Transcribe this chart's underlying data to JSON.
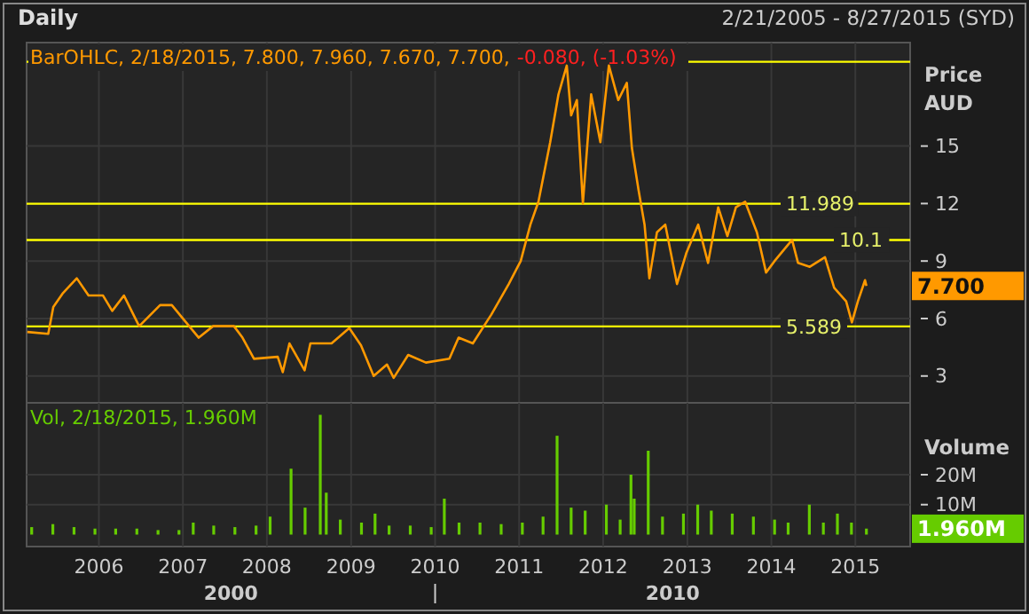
{
  "chart_data": [
    {
      "type": "line",
      "title": "Daily",
      "subtitle": "2/21/2005 - 8/27/2015 (SYD)",
      "ylabel": "Price AUD",
      "annotations": [
        "BarOHLC, 2/18/2015, 7.800, 7.960, 7.670, 7.700,",
        "-0.080, (-1.03%)",
        {
          "text": "7.700",
          "x": "2015-02-18",
          "y": 7.7
        }
      ],
      "x": [
        "2005-02-24",
        "2005-05-26",
        "2005-06-17",
        "2005-07-27",
        "2005-09-27",
        "2005-11-17",
        "2006-01-19",
        "2006-02-28",
        "2006-04-20",
        "2006-06-25",
        "2006-09-24",
        "2006-11-14",
        "2007-01-15",
        "2007-03-11",
        "2007-05-12",
        "2007-08-11",
        "2007-09-17",
        "2007-11-06",
        "2008-02-17",
        "2008-03-10",
        "2008-04-08",
        "2008-06-13",
        "2008-07-08",
        "2008-10-08",
        "2008-12-24",
        "2009-02-13",
        "2009-04-09",
        "2009-06-06",
        "2009-07-05",
        "2009-09-06",
        "2009-11-22",
        "2010-03-04",
        "2010-04-13",
        "2010-06-14",
        "2010-09-02",
        "2010-11-17",
        "2011-01-08",
        "2011-02-19",
        "2011-03-26",
        "2011-05-16",
        "2011-06-21",
        "2011-07-27",
        "2011-08-15",
        "2011-09-09",
        "2011-10-05",
        "2011-11-10",
        "2011-12-20",
        "2012-01-26",
        "2012-03-07",
        "2012-04-13",
        "2012-05-05",
        "2012-06-03",
        "2012-06-29",
        "2012-07-20",
        "2012-08-22",
        "2012-09-27",
        "2012-11-17",
        "2012-12-27",
        "2013-02-17",
        "2013-04-01",
        "2013-05-15",
        "2013-06-24",
        "2013-07-31",
        "2013-09-09",
        "2013-10-30",
        "2013-12-09",
        "2014-01-15",
        "2014-04-01",
        "2014-04-27",
        "2014-06-17",
        "2014-08-22",
        "2014-10-01",
        "2014-11-22",
        "2014-12-17",
        "2015-01-12",
        "2015-02-12",
        "2015-02-18"
      ],
      "series": [
        {
          "color": "#ff9900",
          "values": [
            5.3,
            5.2,
            6.6,
            7.3,
            8.1,
            7.2,
            7.2,
            6.4,
            7.2,
            5.6,
            6.7,
            6.7,
            5.8,
            5.0,
            5.6,
            5.6,
            5.0,
            3.9,
            4.0,
            3.2,
            4.7,
            3.3,
            4.7,
            4.7,
            5.5,
            4.6,
            3.0,
            3.6,
            2.9,
            4.1,
            3.7,
            3.9,
            5.0,
            4.7,
            6.2,
            7.8,
            9.0,
            10.9,
            12.1,
            15.2,
            17.7,
            19.2,
            16.6,
            17.4,
            12.0,
            17.7,
            15.2,
            19.2,
            17.4,
            18.3,
            14.9,
            12.7,
            10.9,
            8.1,
            10.5,
            10.9,
            7.8,
            9.4,
            10.9,
            8.9,
            11.8,
            10.3,
            11.8,
            12.1,
            10.5,
            8.4,
            9.0,
            10.1,
            8.9,
            8.7,
            9.2,
            7.6,
            6.9,
            5.8,
            6.9,
            8.0,
            7.7
          ]
        }
      ],
      "xlim": [
        "2005-02-21",
        "2015-08-27"
      ],
      "xticks": [
        "2006",
        "2007",
        "2008",
        "2009",
        "2010",
        "2011",
        "2012",
        "2013",
        "2014",
        "2015"
      ],
      "ylim": [
        1.6,
        20.4
      ],
      "yticks": [
        3,
        6,
        9,
        12,
        15
      ],
      "ref_lines": [
        {
          "axis": "y",
          "value": 19.4,
          "color": "#ffff00"
        },
        {
          "axis": "y",
          "value": 11.989,
          "label": "11.989",
          "color": "#ffff00"
        },
        {
          "axis": "y",
          "value": 10.1,
          "label": "10.1",
          "color": "#ffff00"
        },
        {
          "axis": "y",
          "value": 5.589,
          "label": "5.589",
          "color": "#ffff00"
        }
      ],
      "grid": true,
      "tick_labels": "y"
    },
    {
      "type": "bar",
      "ylabel": "Volume",
      "annotations": [
        "Vol, 2/18/2015, 1.960M",
        {
          "text": "1.960M",
          "x": "2015-02-18",
          "y": 1.96
        },
        "2000",
        "2010"
      ],
      "x": [
        "2005-03-15",
        "2005-06-15",
        "2005-09-15",
        "2005-12-15",
        "2006-03-15",
        "2006-06-15",
        "2006-09-15",
        "2006-12-15",
        "2007-02-15",
        "2007-05-15",
        "2007-08-15",
        "2007-11-15",
        "2008-01-15",
        "2008-04-15",
        "2008-06-15",
        "2008-08-20",
        "2008-09-15",
        "2008-11-15",
        "2009-02-15",
        "2009-04-15",
        "2009-06-15",
        "2009-09-15",
        "2009-12-15",
        "2010-02-10",
        "2010-04-15",
        "2010-07-15",
        "2010-10-15",
        "2011-01-15",
        "2011-04-15",
        "2011-06-15",
        "2011-08-15",
        "2011-10-15",
        "2012-01-15",
        "2012-03-15",
        "2012-05-01",
        "2012-05-15",
        "2012-07-15",
        "2012-09-15",
        "2012-12-15",
        "2013-02-15",
        "2013-04-15",
        "2013-07-15",
        "2013-10-15",
        "2014-01-15",
        "2014-03-15",
        "2014-06-15",
        "2014-08-15",
        "2014-10-15",
        "2014-12-15",
        "2015-02-18"
      ],
      "series": [
        {
          "color": "#66cc00",
          "values": [
            2.5,
            3.5,
            2.5,
            2,
            2,
            2,
            1.5,
            1.5,
            4,
            3,
            2.5,
            3,
            6,
            22,
            9,
            40,
            14,
            5,
            4,
            7,
            3,
            3,
            2.5,
            12,
            4,
            4,
            3.5,
            4,
            6,
            33,
            9,
            8,
            10,
            5,
            20,
            12,
            28,
            6,
            7,
            10,
            8,
            7,
            6,
            5,
            4,
            10,
            4,
            7,
            4,
            2
          ]
        }
      ],
      "xlim": [
        "2005-02-21",
        "2015-08-27"
      ],
      "xticks": [
        "2006",
        "2007",
        "2008",
        "2009",
        "2010",
        "2011",
        "2012",
        "2013",
        "2014",
        "2015"
      ],
      "ylim": [
        -4,
        44
      ],
      "yticks": [
        {
          "value": 10,
          "label": "10M"
        },
        {
          "value": 20,
          "label": "20M"
        }
      ],
      "grid": true
    }
  ]
}
